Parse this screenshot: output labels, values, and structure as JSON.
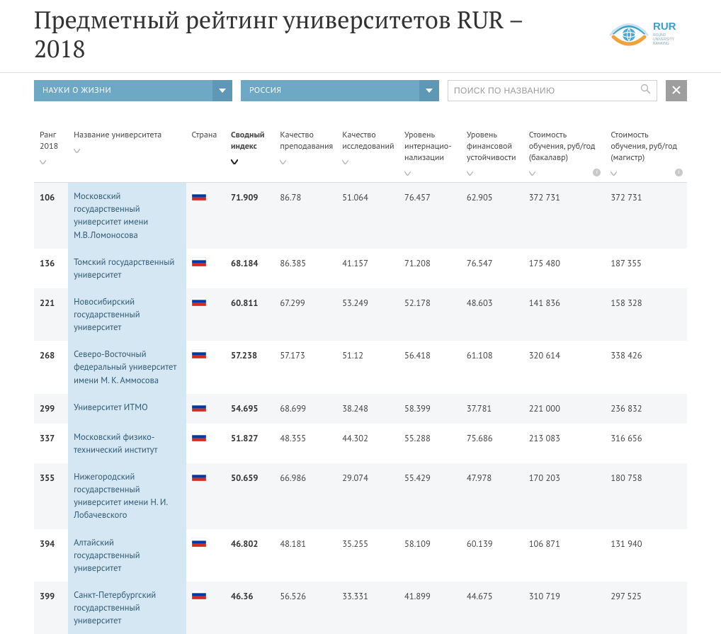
{
  "title": "Предметный рейтинг университетов RUR – 2018",
  "logo": {
    "text_top": "RUR",
    "text_sub": "ROUND UNIVERSITY RANKING"
  },
  "controls": {
    "subject": "НАУКИ О ЖИЗНИ",
    "country": "РОССИЯ",
    "search_placeholder": "ПОИСК ПО НАЗВАНИЮ"
  },
  "table": {
    "columns": [
      {
        "key": "rank",
        "label": "Ранг 2018",
        "sortable": true,
        "active": false
      },
      {
        "key": "name",
        "label": "Название университета",
        "sortable": true,
        "active": false
      },
      {
        "key": "country",
        "label": "Страна",
        "sortable": false,
        "active": false
      },
      {
        "key": "index",
        "label": "Сводный индекс",
        "sortable": true,
        "active": true
      },
      {
        "key": "teach",
        "label": "Качество преподавания",
        "sortable": true,
        "active": false
      },
      {
        "key": "research",
        "label": "Качество исследований",
        "sortable": true,
        "active": false
      },
      {
        "key": "intl",
        "label": "Уровень интернацио-нализации",
        "sortable": true,
        "active": false
      },
      {
        "key": "fin",
        "label": "Уровень финансовой устойчивости",
        "sortable": true,
        "active": false
      },
      {
        "key": "cost_ba",
        "label": "Стоимость обучения, руб/год (бакалавр)",
        "sortable": true,
        "active": false,
        "info": true
      },
      {
        "key": "cost_ma",
        "label": "Стоимость обучения, руб/год (магистр)",
        "sortable": true,
        "active": false,
        "info": true
      }
    ],
    "rows": [
      {
        "rank": "106",
        "name": "Московский государственный университет имени М.В.Ломоносова",
        "index": "71.909",
        "teach": "86.78",
        "research": "51.064",
        "intl": "76.457",
        "fin": "62.905",
        "cost_ba": "372 731",
        "cost_ma": "372 731"
      },
      {
        "rank": "136",
        "name": "Томский государственный университет",
        "index": "68.184",
        "teach": "86.385",
        "research": "41.157",
        "intl": "71.208",
        "fin": "76.547",
        "cost_ba": "175 480",
        "cost_ma": "187 355"
      },
      {
        "rank": "221",
        "name": "Новосибирский государственный университет",
        "index": "60.811",
        "teach": "67.299",
        "research": "53.249",
        "intl": "52.178",
        "fin": "48.603",
        "cost_ba": "141 836",
        "cost_ma": "158 328"
      },
      {
        "rank": "268",
        "name": "Северо-Восточный федеральный университет имени М. К. Аммосова",
        "index": "57.238",
        "teach": "57.173",
        "research": "51.12",
        "intl": "56.418",
        "fin": "61.108",
        "cost_ba": "320 614",
        "cost_ma": "338 426"
      },
      {
        "rank": "299",
        "name": "Университет ИТМО",
        "index": "54.695",
        "teach": "68.699",
        "research": "38.248",
        "intl": "58.399",
        "fin": "37.781",
        "cost_ba": "221 000",
        "cost_ma": "236 832"
      },
      {
        "rank": "337",
        "name": "Московский физико-технический институт",
        "index": "51.827",
        "teach": "48.355",
        "research": "44.302",
        "intl": "55.288",
        "fin": "75.686",
        "cost_ba": "213 083",
        "cost_ma": "316 656"
      },
      {
        "rank": "355",
        "name": "Нижегородский государственный университет имени Н. И. Лобачевского",
        "index": "50.659",
        "teach": "66.986",
        "research": "29.074",
        "intl": "55.429",
        "fin": "47.978",
        "cost_ba": "170 203",
        "cost_ma": "180 758"
      },
      {
        "rank": "394",
        "name": "Алтайский государственный университет",
        "index": "46.802",
        "teach": "48.181",
        "research": "35.255",
        "intl": "58.109",
        "fin": "60.139",
        "cost_ba": "106 871",
        "cost_ma": "131 940"
      },
      {
        "rank": "399",
        "name": "Санкт-Петербургский государственный университет",
        "index": "46.36",
        "teach": "56.526",
        "research": "33.331",
        "intl": "41.899",
        "fin": "44.675",
        "cost_ba": "310 719",
        "cost_ma": "297 525"
      }
    ]
  },
  "colors": {
    "dropdown_bg": "#6fa8c4",
    "dropdown_chev_bg": "#5e98b6",
    "uni_cell_bg": "#d5e7f2",
    "uni_cell_text": "#2f5a74",
    "row_odd_bg": "#f4f6f7",
    "row_even_bg": "#ffffff",
    "close_bg": "#9e9e9e",
    "sort_arrow": "#9a9a9a",
    "sort_arrow_active": "#222222"
  }
}
